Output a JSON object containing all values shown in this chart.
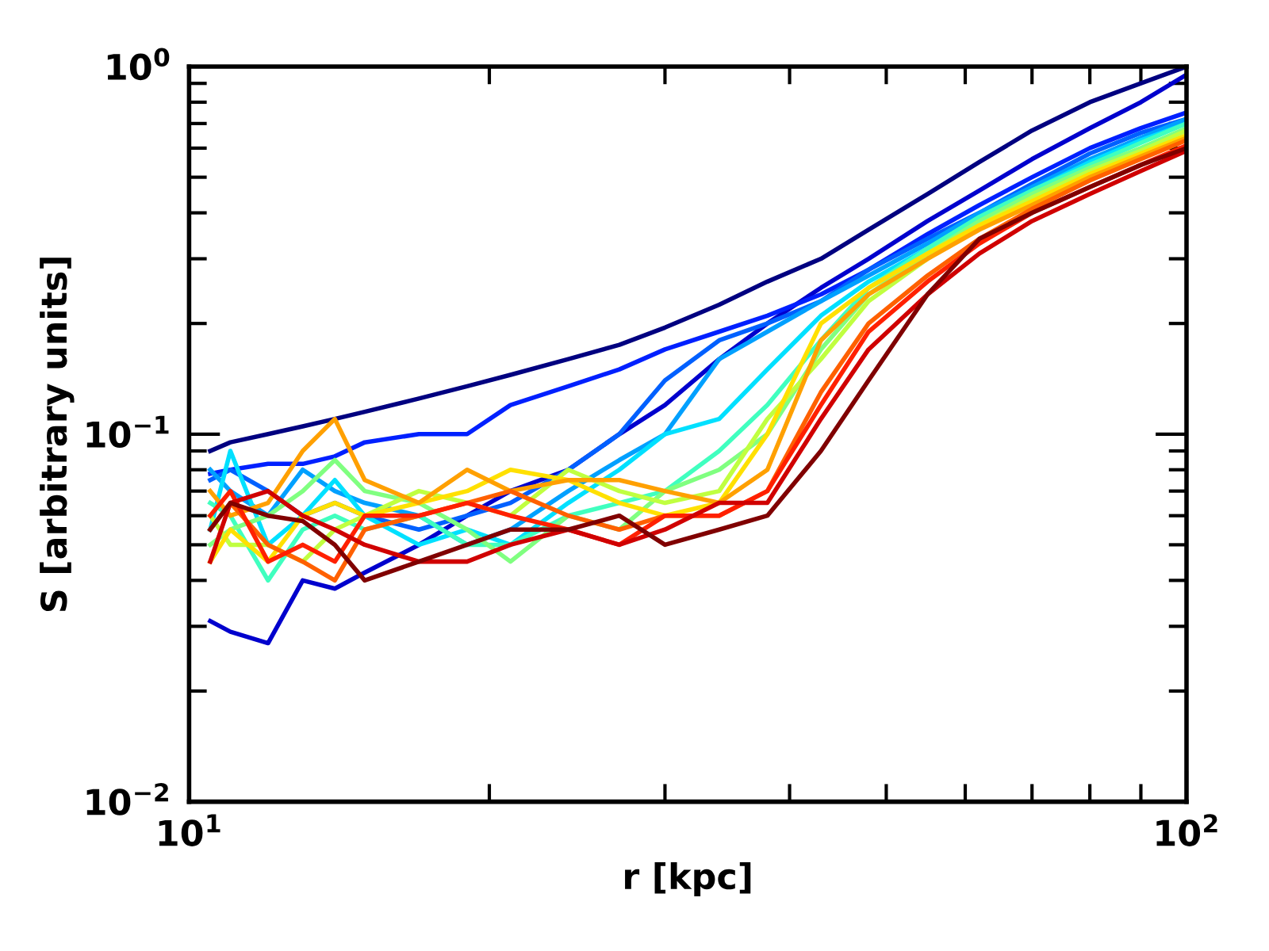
{
  "chart_data": {
    "type": "line",
    "xlabel": "r [kpc]",
    "ylabel": "S [arbitrary units]",
    "log": "xy",
    "xlim": [
      10,
      100
    ],
    "ylim": [
      0.01,
      1
    ],
    "xticks": [
      {
        "value": 10,
        "label": "10$^{1}$"
      },
      {
        "value": 100,
        "label": "10$^{2}$"
      }
    ],
    "yticks": [
      {
        "value": 0.01,
        "label": "10$^{−2}$"
      },
      {
        "value": 0.1,
        "label": "10$^{−1}$"
      },
      {
        "value": 1,
        "label": "10$^{0}$"
      }
    ],
    "grid": false,
    "legend": false,
    "marker": "none",
    "line_style": "solid",
    "x": [
      10.5,
      11,
      12,
      13,
      14,
      15,
      17,
      19,
      21,
      24,
      27,
      30,
      34,
      38,
      43,
      48,
      55,
      62,
      70,
      80,
      90,
      100
    ],
    "series": [
      {
        "color": "#000080",
        "values": [
          0.09,
          0.095,
          0.1,
          0.105,
          0.11,
          0.115,
          0.125,
          0.135,
          0.145,
          0.16,
          0.175,
          0.195,
          0.225,
          0.26,
          0.3,
          0.36,
          0.45,
          0.55,
          0.67,
          0.8,
          0.9,
          1.0
        ]
      },
      {
        "color": "#0000cd",
        "values": [
          0.031,
          0.029,
          0.027,
          0.04,
          0.038,
          0.042,
          0.05,
          0.06,
          0.07,
          0.08,
          0.1,
          0.12,
          0.16,
          0.2,
          0.25,
          0.3,
          0.38,
          0.46,
          0.56,
          0.68,
          0.8,
          0.95
        ]
      },
      {
        "color": "#0020ff",
        "values": [
          0.078,
          0.08,
          0.083,
          0.083,
          0.087,
          0.095,
          0.1,
          0.1,
          0.12,
          0.135,
          0.15,
          0.17,
          0.19,
          0.21,
          0.24,
          0.28,
          0.35,
          0.42,
          0.5,
          0.6,
          0.68,
          0.75
        ]
      },
      {
        "color": "#0060ff",
        "values": [
          0.075,
          0.08,
          0.07,
          0.06,
          0.065,
          0.06,
          0.055,
          0.06,
          0.065,
          0.08,
          0.1,
          0.14,
          0.18,
          0.2,
          0.23,
          0.28,
          0.34,
          0.4,
          0.48,
          0.58,
          0.66,
          0.72
        ]
      },
      {
        "color": "#00a0ff",
        "values": [
          0.08,
          0.07,
          0.06,
          0.08,
          0.07,
          0.065,
          0.06,
          0.05,
          0.055,
          0.07,
          0.085,
          0.1,
          0.16,
          0.19,
          0.23,
          0.27,
          0.33,
          0.4,
          0.47,
          0.56,
          0.64,
          0.72
        ]
      },
      {
        "color": "#00e0ff",
        "values": [
          0.055,
          0.09,
          0.05,
          0.06,
          0.075,
          0.06,
          0.05,
          0.055,
          0.05,
          0.065,
          0.08,
          0.1,
          0.11,
          0.15,
          0.21,
          0.26,
          0.32,
          0.39,
          0.46,
          0.55,
          0.63,
          0.7
        ]
      },
      {
        "color": "#40ffbf",
        "values": [
          0.065,
          0.06,
          0.04,
          0.055,
          0.06,
          0.055,
          0.06,
          0.05,
          0.05,
          0.06,
          0.065,
          0.07,
          0.09,
          0.12,
          0.18,
          0.25,
          0.32,
          0.39,
          0.46,
          0.54,
          0.62,
          0.7
        ]
      },
      {
        "color": "#80ff80",
        "values": [
          0.05,
          0.055,
          0.06,
          0.07,
          0.085,
          0.07,
          0.065,
          0.055,
          0.045,
          0.06,
          0.055,
          0.07,
          0.08,
          0.1,
          0.17,
          0.24,
          0.31,
          0.38,
          0.45,
          0.53,
          0.6,
          0.68
        ]
      },
      {
        "color": "#c0ff40",
        "values": [
          0.06,
          0.05,
          0.05,
          0.045,
          0.055,
          0.06,
          0.07,
          0.065,
          0.06,
          0.08,
          0.07,
          0.065,
          0.07,
          0.11,
          0.16,
          0.23,
          0.3,
          0.37,
          0.44,
          0.52,
          0.59,
          0.67
        ]
      },
      {
        "color": "#ffe000",
        "values": [
          0.045,
          0.055,
          0.045,
          0.06,
          0.065,
          0.06,
          0.065,
          0.07,
          0.08,
          0.075,
          0.065,
          0.06,
          0.065,
          0.1,
          0.2,
          0.25,
          0.31,
          0.37,
          0.43,
          0.51,
          0.58,
          0.65
        ]
      },
      {
        "color": "#ffa000",
        "values": [
          0.07,
          0.06,
          0.065,
          0.09,
          0.11,
          0.075,
          0.065,
          0.08,
          0.07,
          0.075,
          0.075,
          0.07,
          0.065,
          0.08,
          0.18,
          0.24,
          0.3,
          0.36,
          0.42,
          0.5,
          0.57,
          0.64
        ]
      },
      {
        "color": "#ff6000",
        "values": [
          0.055,
          0.065,
          0.05,
          0.045,
          0.04,
          0.055,
          0.06,
          0.065,
          0.07,
          0.06,
          0.055,
          0.06,
          0.06,
          0.07,
          0.13,
          0.2,
          0.27,
          0.34,
          0.41,
          0.49,
          0.56,
          0.63
        ]
      },
      {
        "color": "#ff2000",
        "values": [
          0.06,
          0.07,
          0.045,
          0.05,
          0.045,
          0.06,
          0.06,
          0.065,
          0.06,
          0.055,
          0.05,
          0.06,
          0.06,
          0.07,
          0.12,
          0.19,
          0.26,
          0.33,
          0.4,
          0.47,
          0.54,
          0.61
        ]
      },
      {
        "color": "#d00000",
        "values": [
          0.045,
          0.065,
          0.07,
          0.06,
          0.055,
          0.05,
          0.045,
          0.045,
          0.05,
          0.055,
          0.05,
          0.055,
          0.065,
          0.065,
          0.11,
          0.17,
          0.24,
          0.31,
          0.38,
          0.45,
          0.52,
          0.59
        ]
      },
      {
        "color": "#800000",
        "values": [
          0.055,
          0.065,
          0.06,
          0.058,
          0.05,
          0.04,
          0.045,
          0.05,
          0.055,
          0.055,
          0.06,
          0.05,
          0.055,
          0.06,
          0.09,
          0.14,
          0.24,
          0.34,
          0.4,
          0.47,
          0.54,
          0.6
        ]
      }
    ]
  }
}
